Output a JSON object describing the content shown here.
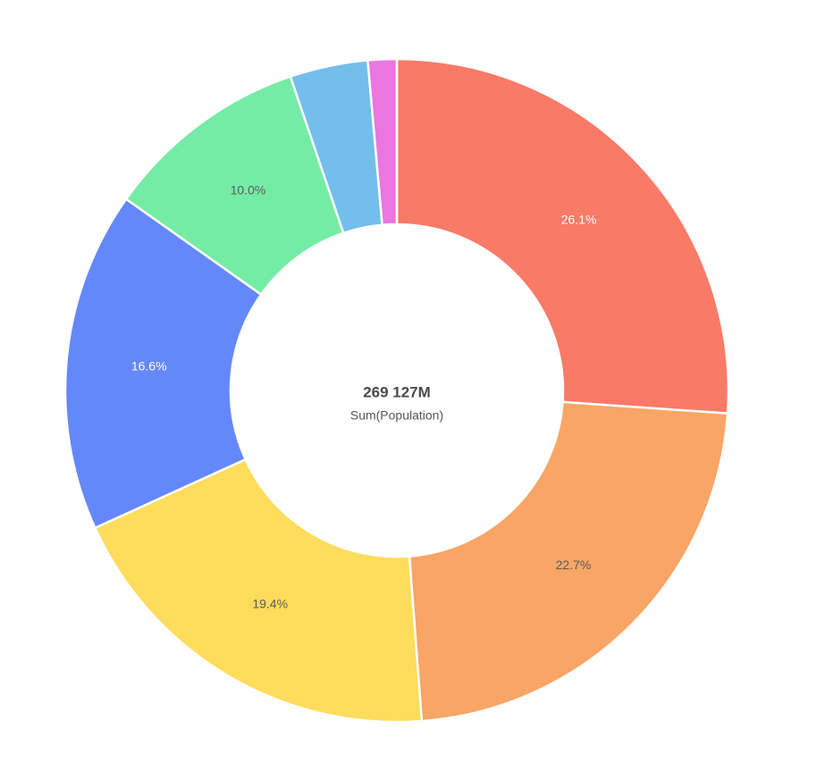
{
  "chart_data": {
    "type": "pie",
    "variant": "donut",
    "center_value": "269 127M",
    "center_caption": "Sum(Population)",
    "title": "",
    "legend": "none",
    "slices": [
      {
        "value_percent": 26.1,
        "label": "26.1%",
        "color": "#FA7A68",
        "label_color": "#ffffff"
      },
      {
        "value_percent": 22.7,
        "label": "22.7%",
        "color": "#F8A565",
        "label_color": "#5a5a5a"
      },
      {
        "value_percent": 19.4,
        "label": "19.4%",
        "color": "#FEDC5C",
        "label_color": "#5a5a5a"
      },
      {
        "value_percent": 16.6,
        "label": "16.6%",
        "color": "#6488FB",
        "label_color": "#ffffff"
      },
      {
        "value_percent": 10.0,
        "label": "10.0%",
        "color": "#75ECA6",
        "label_color": "#5a5a5a"
      },
      {
        "value_percent": 3.8,
        "label": "",
        "color": "#74BEEC",
        "label_color": "#5a5a5a"
      },
      {
        "value_percent": 1.4,
        "label": "",
        "color": "#EB76E0",
        "label_color": "#5a5a5a"
      }
    ]
  }
}
